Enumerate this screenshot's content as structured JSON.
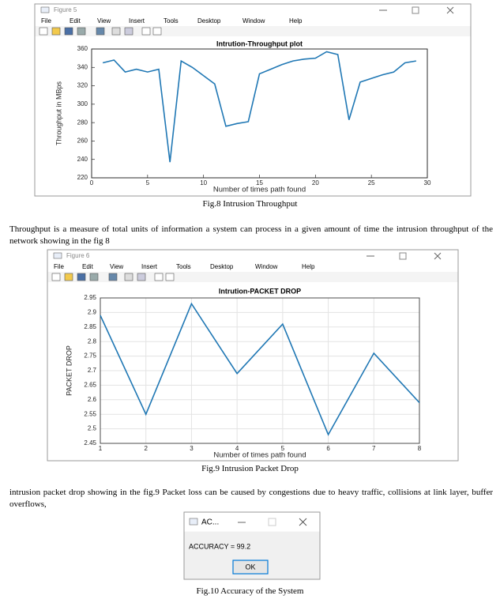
{
  "windows": [
    {
      "title": "Figure 5",
      "menu": [
        "File",
        "Edit",
        "View",
        "Insert",
        "Tools",
        "Desktop",
        "Window",
        "Help"
      ]
    },
    {
      "title": "Figure 6",
      "menu": [
        "File",
        "Edit",
        "View",
        "Insert",
        "Tools",
        "Desktop",
        "Window",
        "Help"
      ]
    }
  ],
  "chart_data": [
    {
      "type": "line",
      "title": "Intrution-Throughput plot",
      "xlabel": "Number of times path found",
      "ylabel": "Throughput in MBps",
      "x": [
        1,
        2,
        3,
        4,
        5,
        6,
        7,
        8,
        9,
        10,
        11,
        12,
        13,
        14,
        15,
        16,
        17,
        18,
        19,
        20,
        21,
        22,
        23,
        24,
        25,
        26,
        27,
        28,
        29
      ],
      "values": [
        345,
        348,
        335,
        338,
        335,
        338,
        237,
        347,
        340,
        331,
        322,
        276,
        279,
        281,
        333,
        338,
        343,
        347,
        349,
        350,
        357,
        354,
        283,
        324,
        328,
        332,
        335,
        345,
        347
      ],
      "color": "#1f77b4",
      "xlim": [
        0,
        30
      ],
      "xticks": [
        0,
        5,
        10,
        15,
        20,
        25,
        30
      ],
      "ylim": [
        220,
        360
      ],
      "yticks": [
        220,
        240,
        260,
        280,
        300,
        320,
        340,
        360
      ],
      "grid": false
    },
    {
      "type": "line",
      "title": "Intrution-PACKET DROP",
      "xlabel": "Number of times path found",
      "ylabel": "PACKET DROP",
      "x": [
        1,
        2,
        3,
        4,
        5,
        6,
        7,
        8
      ],
      "values": [
        2.89,
        2.55,
        2.93,
        2.69,
        2.86,
        2.48,
        2.76,
        2.59
      ],
      "color": "#1f77b4",
      "xlim": [
        1,
        8
      ],
      "xticks": [
        1,
        2,
        3,
        4,
        5,
        6,
        7,
        8
      ],
      "ylim": [
        2.45,
        2.95
      ],
      "yticks": [
        2.45,
        2.5,
        2.55,
        2.6,
        2.65,
        2.7,
        2.75,
        2.8,
        2.85,
        2.9,
        2.95
      ],
      "grid": true
    }
  ],
  "captions": [
    "Fig.8 Intrusion Throughput",
    "Fig.9 Intrusion Packet Drop",
    "Fig.10  Accuracy of the System"
  ],
  "paragraphs": [
    "Throughput is a measure of total units of information a system can process in a given amount of time  the intrusion throughput  of the network showing in the fig 8",
    "intrusion packet drop showing in the fig.9 Packet loss can be caused by congestions due to heavy traffic, collisions at link layer, buffer overflows,"
  ],
  "dialog": {
    "title": "AC...",
    "text": "ACCURACY = 99.2",
    "button": "OK"
  }
}
